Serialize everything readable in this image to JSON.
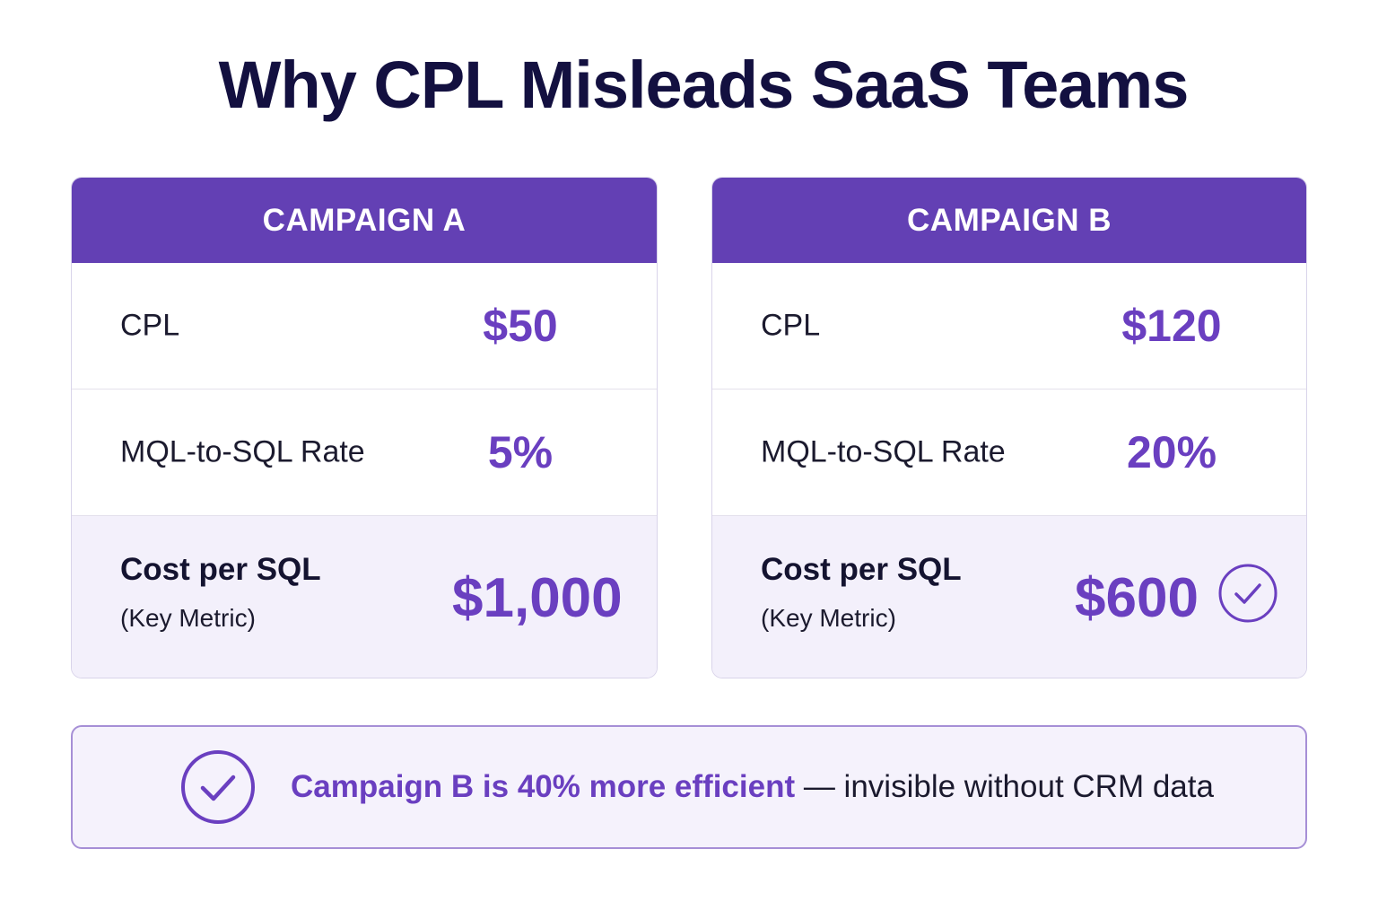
{
  "title": "Why CPL Misleads SaaS Teams",
  "colors": {
    "header": "#6340b4",
    "accent": "#6a3fc0",
    "highlight_bg": "#f3f0fb",
    "title": "#131040"
  },
  "campaigns": [
    {
      "header": "CAMPAIGN A",
      "rows": [
        {
          "label": "CPL",
          "value": "$50"
        },
        {
          "label": "MQL-to-SQL Rate",
          "value": "5%"
        }
      ],
      "key": {
        "label": "Cost per SQL",
        "sub": "(Key Metric)",
        "value": "$1,000"
      }
    },
    {
      "header": "CAMPAIGN B",
      "rows": [
        {
          "label": "CPL",
          "value": "$120"
        },
        {
          "label": "MQL-to-SQL Rate",
          "value": "20%"
        }
      ],
      "key": {
        "label": "Cost per SQL",
        "sub": "(Key Metric)",
        "value": "$600",
        "icon": "check-circle-icon"
      }
    }
  ],
  "banner": {
    "icon": "check-circle-icon",
    "highlight": "Campaign B is 40% more efficient",
    "rest": " — invisible without CRM data"
  }
}
